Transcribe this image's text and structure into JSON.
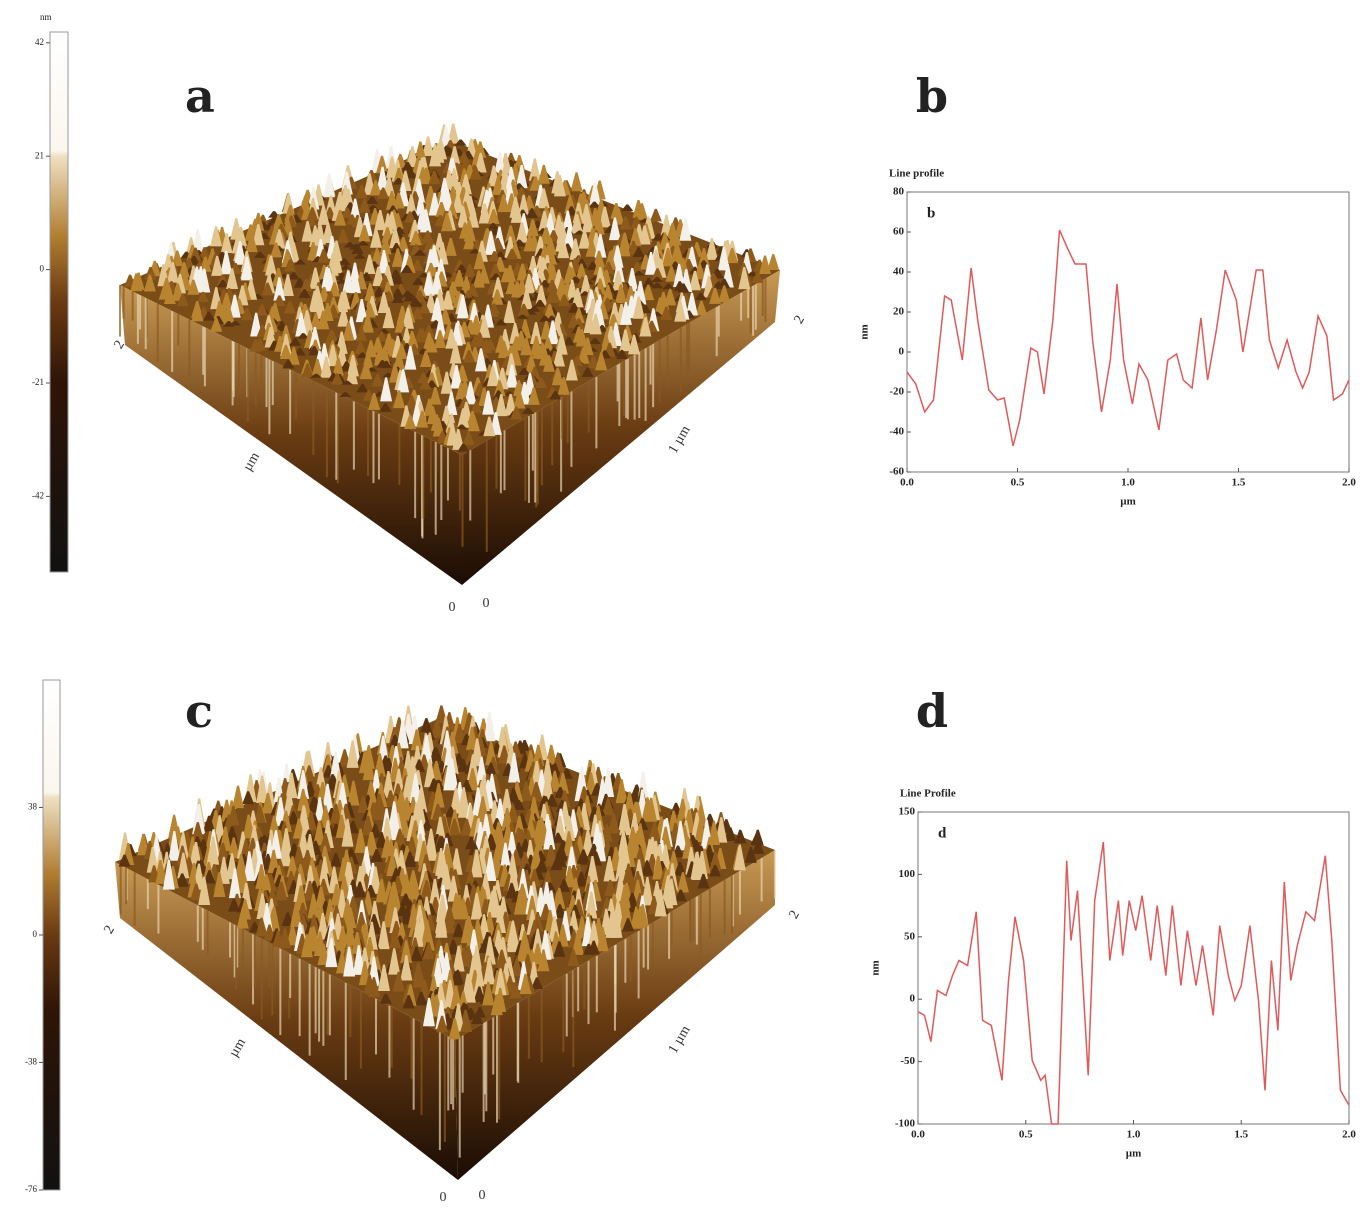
{
  "panels": [
    {
      "label": "a",
      "colorbar": {
        "unit": "nm",
        "clim": [
          -56,
          44
        ],
        "ticks": [
          42,
          21,
          0,
          -21,
          -42
        ]
      },
      "axis_labels": [
        "2",
        "2",
        "1 µm",
        "µm",
        "0",
        "0"
      ]
    },
    {
      "label": "c",
      "colorbar": {
        "clim": [
          -76,
          76
        ],
        "ticks": [
          38,
          0,
          -38,
          -76
        ]
      },
      "axis_labels": [
        "2",
        "2",
        "1 µm",
        "µm",
        "0",
        "0"
      ]
    }
  ],
  "chart_data": [
    {
      "type": "line",
      "label": "b",
      "title": "Line profile",
      "inner_label": "b",
      "x_label": "µm",
      "y_label": "nm",
      "xlim": [
        0,
        2
      ],
      "xticks": [
        {
          "value": 0,
          "label": "0.0"
        },
        0.5,
        {
          "value": 1,
          "label": "1.0"
        },
        1.5,
        {
          "value": 2,
          "label": "2.0"
        }
      ],
      "ylim": [
        -60,
        80
      ],
      "yticks": [
        -60,
        -40,
        -20,
        0,
        20,
        40,
        60,
        80
      ],
      "series": [
        {
          "color": "#e05a5a",
          "x": [
            0,
            0.04,
            0.08,
            0.12,
            0.17,
            0.2,
            0.25,
            0.29,
            0.32,
            0.37,
            0.41,
            0.44,
            0.48,
            0.51,
            0.56,
            0.59,
            0.62,
            0.66,
            0.69,
            0.73,
            0.76,
            0.81,
            0.84,
            0.88,
            0.92,
            0.95,
            0.98,
            1.02,
            1.05,
            1.09,
            1.14,
            1.18,
            1.22,
            1.25,
            1.29,
            1.33,
            1.36,
            1.4,
            1.44,
            1.49,
            1.52,
            1.58,
            1.61,
            1.64,
            1.68,
            1.72,
            1.76,
            1.79,
            1.82,
            1.86,
            1.9,
            1.93,
            1.97,
            2
          ],
          "values": [
            -10,
            -16,
            -30,
            -24,
            28,
            26,
            -4,
            42,
            16,
            -19,
            -24,
            -23,
            -47,
            -34,
            2,
            0,
            -21,
            16,
            61,
            51,
            44,
            44,
            6,
            -30,
            -4,
            34,
            -4,
            -26,
            -6,
            -14,
            -39,
            -4,
            -1,
            -14,
            -18,
            17,
            -14,
            11,
            41,
            26,
            0,
            41,
            41,
            6,
            -8,
            6,
            -10,
            -18,
            -10,
            18,
            8,
            -24,
            -21,
            -14
          ]
        }
      ]
    },
    {
      "type": "line",
      "label": "d",
      "title": "Line Profile",
      "inner_label": "d",
      "x_label": "µm",
      "y_label": "nm",
      "xlim": [
        0,
        2
      ],
      "xticks": [
        {
          "value": 0,
          "label": "0.0"
        },
        0.5,
        {
          "value": 1,
          "label": "1.0"
        },
        1.5,
        {
          "value": 2,
          "label": "2.0"
        }
      ],
      "ylim": [
        -100,
        150
      ],
      "yticks": [
        -100,
        -50,
        0,
        50,
        100,
        150
      ],
      "series": [
        {
          "color": "#e05a5a",
          "x": [
            0,
            0.03,
            0.06,
            0.09,
            0.13,
            0.16,
            0.19,
            0.23,
            0.27,
            0.3,
            0.34,
            0.39,
            0.42,
            0.45,
            0.49,
            0.53,
            0.57,
            0.59,
            0.62,
            0.65,
            0.69,
            0.71,
            0.74,
            0.79,
            0.82,
            0.86,
            0.89,
            0.93,
            0.95,
            0.98,
            1.01,
            1.04,
            1.08,
            1.11,
            1.15,
            1.18,
            1.22,
            1.25,
            1.29,
            1.32,
            1.37,
            1.4,
            1.44,
            1.47,
            1.5,
            1.54,
            1.58,
            1.61,
            1.64,
            1.67,
            1.7,
            1.73,
            1.76,
            1.8,
            1.84,
            1.89,
            1.92,
            1.96,
            2
          ],
          "values": [
            -10,
            -13,
            -34,
            7,
            3,
            19,
            31,
            27,
            70,
            -17,
            -21,
            -65,
            15,
            66,
            31,
            -49,
            -65,
            -61,
            -100,
            -100,
            111,
            47,
            87,
            -61,
            79,
            126,
            31,
            79,
            35,
            79,
            55,
            83,
            31,
            75,
            19,
            75,
            11,
            55,
            11,
            43,
            -13,
            59,
            19,
            -1,
            11,
            59,
            -1,
            -73,
            31,
            -25,
            94,
            15,
            43,
            70,
            63,
            115,
            47,
            -73,
            -85
          ]
        }
      ]
    }
  ]
}
